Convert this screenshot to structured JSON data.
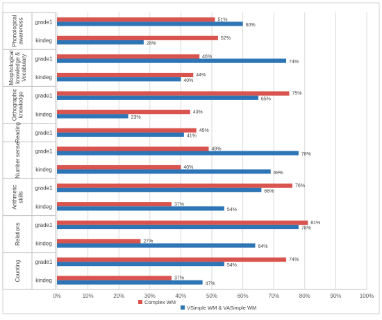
{
  "chart_data": {
    "type": "bar",
    "orientation": "horizontal",
    "xlim": [
      0,
      100
    ],
    "x_ticks": [
      "0%",
      "10%",
      "20%",
      "30%",
      "40%",
      "50%",
      "60%",
      "70%",
      "80%",
      "90%",
      "100%"
    ],
    "grid": true,
    "legend_position": "bottom",
    "colors": {
      "complex": "#d9534f",
      "simple": "#2e75b6"
    },
    "groups": [
      {
        "name": "Phonological awareness",
        "categories": [
          "grade1",
          "kindeg"
        ]
      },
      {
        "name": "Morphological knowledge & Vocabulary",
        "categories": [
          "grade1",
          "kindeg"
        ]
      },
      {
        "name": "Orthographic knowledge",
        "categories": [
          "grade1",
          "kindeg"
        ]
      },
      {
        "name": "Reading",
        "categories": [
          "grade1"
        ]
      },
      {
        "name": "Number sense",
        "categories": [
          "grade1",
          "kindeg"
        ]
      },
      {
        "name": "Arithmetic skills",
        "categories": [
          "grade1",
          "kindeg"
        ]
      },
      {
        "name": "Relations",
        "categories": [
          "grade1",
          "kindeg"
        ]
      },
      {
        "name": "Counting",
        "categories": [
          "grade1",
          "kindeg"
        ]
      }
    ],
    "series": [
      {
        "name": "Complex WM",
        "values": [
          51,
          52,
          46,
          44,
          75,
          43,
          45,
          49,
          40,
          76,
          37,
          81,
          27,
          74,
          37
        ]
      },
      {
        "name": "VSimple WM & VASimple WM",
        "values": [
          60,
          28,
          74,
          40,
          65,
          23,
          41,
          78,
          69,
          66,
          54,
          78,
          64,
          54,
          47
        ]
      }
    ],
    "labels": {
      "complex": [
        "51%",
        "52%",
        "46%",
        "44%",
        "75%",
        "43%",
        "45%",
        "49%",
        "40%",
        "76%",
        "37%",
        "81%",
        "27%",
        "74%",
        "37%"
      ],
      "simple": [
        "60%",
        "28%",
        "74%",
        "40%",
        "65%",
        "23%",
        "41%",
        "78%",
        "69%",
        "66%",
        "54%",
        "78%",
        "64%",
        "54%",
        "47%"
      ]
    }
  }
}
